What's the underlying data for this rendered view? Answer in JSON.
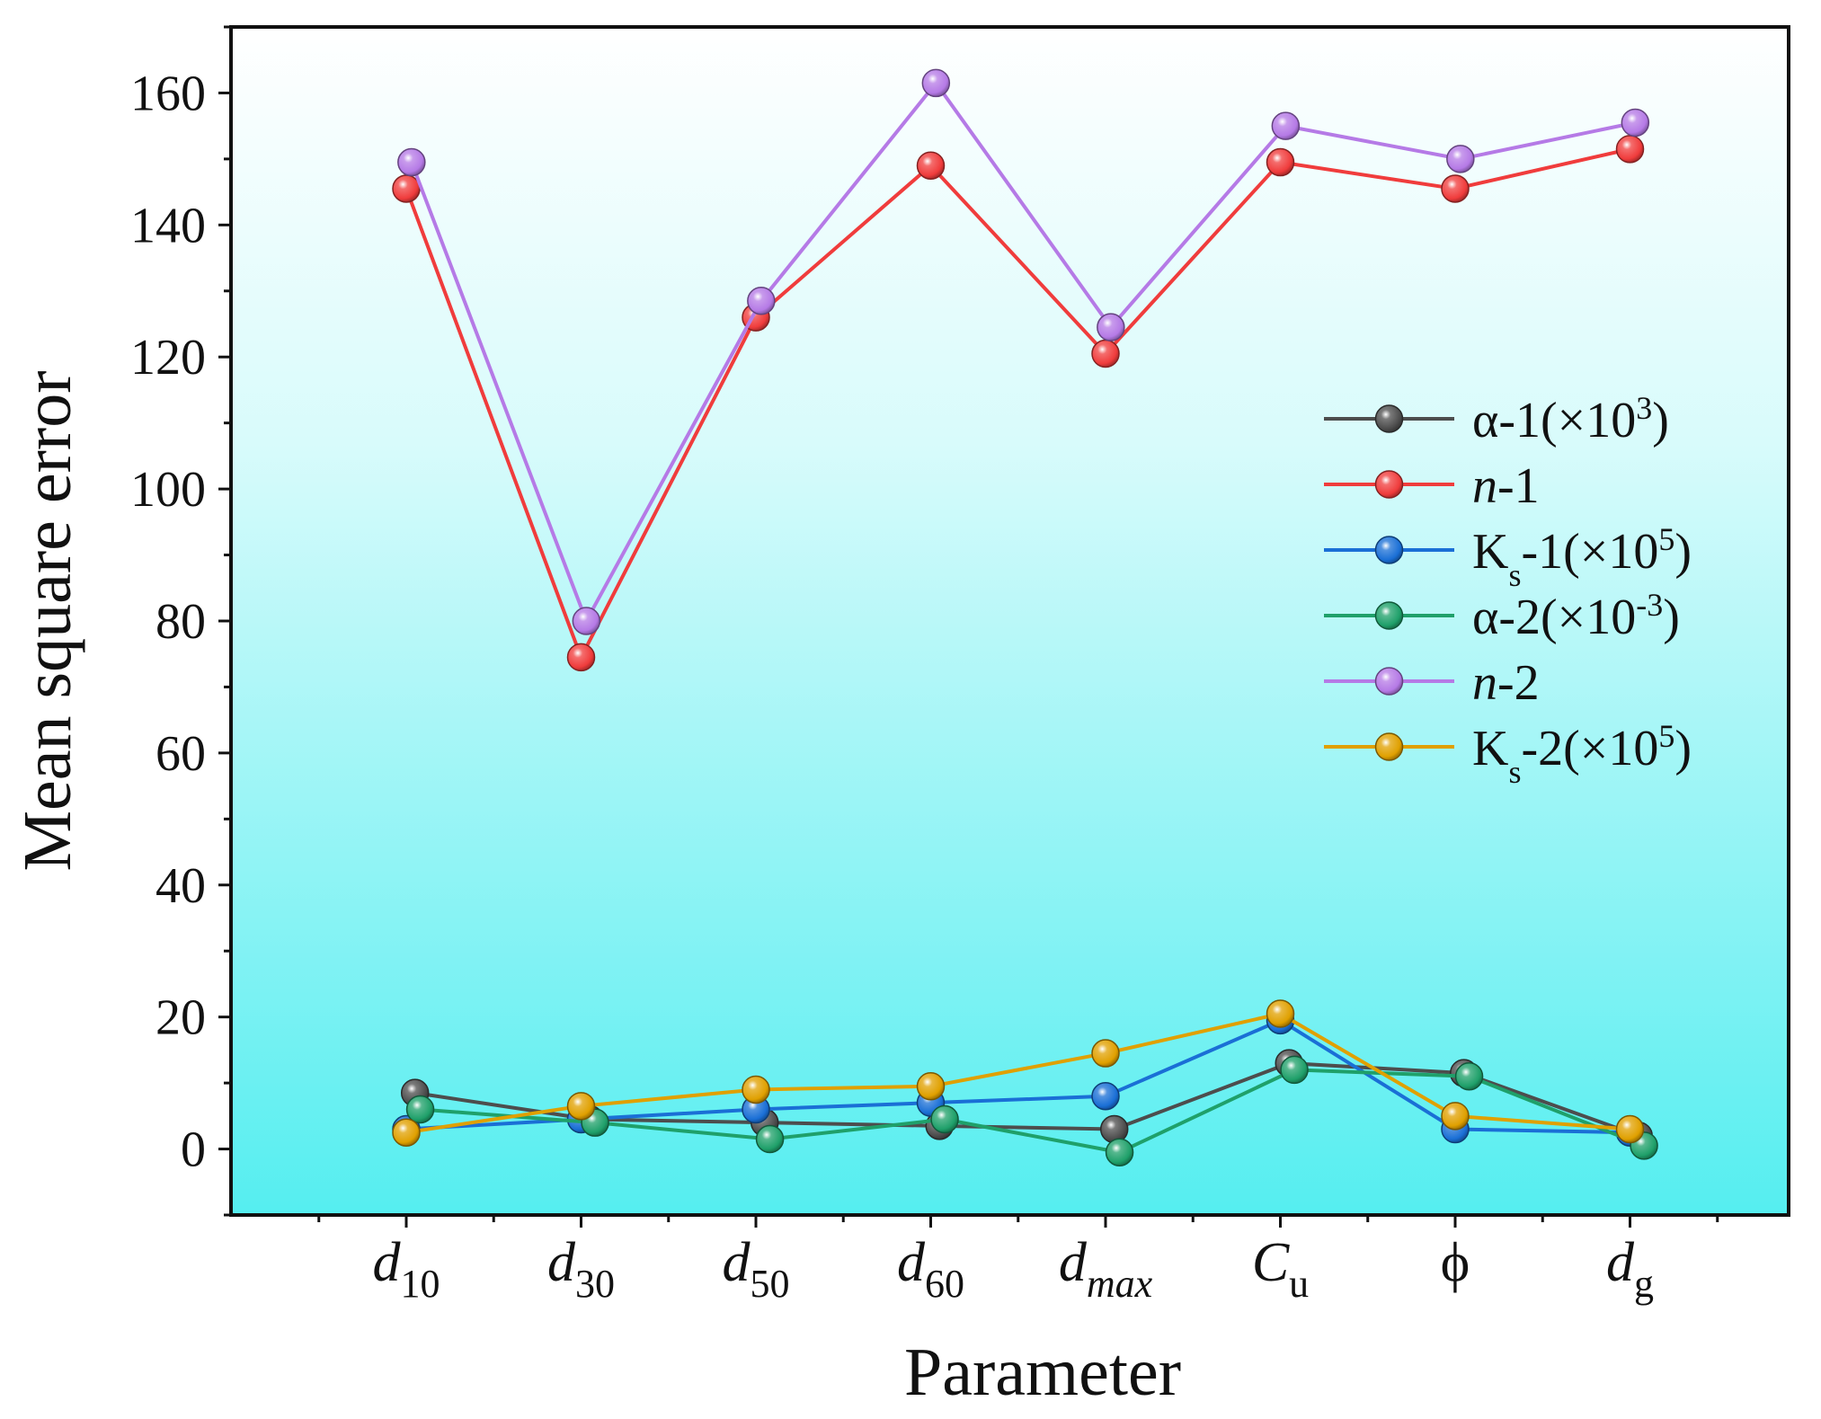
{
  "chart_data": {
    "type": "line",
    "title": "",
    "xlabel": "Parameter",
    "ylabel": "Mean square error",
    "ylim": [
      -10,
      170
    ],
    "yticks": [
      0,
      20,
      40,
      60,
      80,
      100,
      120,
      140,
      160
    ],
    "categories": [
      {
        "main": "d",
        "sub": "10",
        "main_italic": true,
        "sub_italic": false
      },
      {
        "main": "d",
        "sub": "30",
        "main_italic": true,
        "sub_italic": false
      },
      {
        "main": "d",
        "sub": "50",
        "main_italic": true,
        "sub_italic": false
      },
      {
        "main": "d",
        "sub": "60",
        "main_italic": true,
        "sub_italic": false
      },
      {
        "main": "d",
        "sub": "max",
        "main_italic": true,
        "sub_italic": true
      },
      {
        "main": "C",
        "sub": "u",
        "main_italic": true,
        "sub_italic": false
      },
      {
        "main": "ϕ",
        "sub": "",
        "main_italic": false,
        "sub_italic": false
      },
      {
        "main": "d",
        "sub": "g",
        "main_italic": true,
        "sub_italic": false
      }
    ],
    "legend_position": "right",
    "series": [
      {
        "name": "α-1(×10³)",
        "label_parts": [
          {
            "t": "α-1(×10"
          },
          {
            "t": "3",
            "sup": true
          },
          {
            "t": ")"
          }
        ],
        "color": "#4d4d4d",
        "offset": 0.05,
        "values": [
          8.5,
          4.5,
          4.0,
          3.5,
          3.0,
          13.0,
          11.5,
          2.0
        ]
      },
      {
        "name": "n-1",
        "label_parts": [
          {
            "t": "n",
            "it": true
          },
          {
            "t": "-1"
          }
        ],
        "color": "#f03c3c",
        "offset": 0.0,
        "values": [
          145.5,
          74.5,
          126.0,
          149.0,
          120.5,
          149.5,
          145.5,
          151.5
        ]
      },
      {
        "name": "Ks-1(×10⁵)",
        "label_parts": [
          {
            "t": "K"
          },
          {
            "t": "s",
            "sub": true
          },
          {
            "t": "-1(×10"
          },
          {
            "t": "5",
            "sup": true
          },
          {
            "t": ")"
          }
        ],
        "color": "#1a6fd6",
        "offset": 0.0,
        "values": [
          3.0,
          4.5,
          6.0,
          7.0,
          8.0,
          19.5,
          3.0,
          2.5
        ]
      },
      {
        "name": "α-2(×10⁻³)",
        "label_parts": [
          {
            "t": "α-2(×10"
          },
          {
            "t": "-3",
            "sup": true
          },
          {
            "t": ")"
          }
        ],
        "color": "#1fa06a",
        "offset": 0.08,
        "values": [
          6.0,
          4.0,
          1.5,
          4.5,
          -0.5,
          12.0,
          11.0,
          0.5
        ]
      },
      {
        "name": "n-2",
        "label_parts": [
          {
            "t": "n",
            "it": true
          },
          {
            "t": "-2"
          }
        ],
        "color": "#b57ae6",
        "offset": 0.03,
        "values": [
          149.5,
          80.0,
          128.5,
          161.5,
          124.5,
          155.0,
          150.0,
          155.5
        ]
      },
      {
        "name": "Ks-2(×10⁵)",
        "label_parts": [
          {
            "t": "K"
          },
          {
            "t": "s",
            "sub": true
          },
          {
            "t": "-2(×10"
          },
          {
            "t": "5",
            "sup": true
          },
          {
            "t": ")"
          }
        ],
        "color": "#e0a000",
        "offset": 0.0,
        "values": [
          2.5,
          6.5,
          9.0,
          9.5,
          14.5,
          20.5,
          5.0,
          3.0
        ]
      }
    ]
  }
}
